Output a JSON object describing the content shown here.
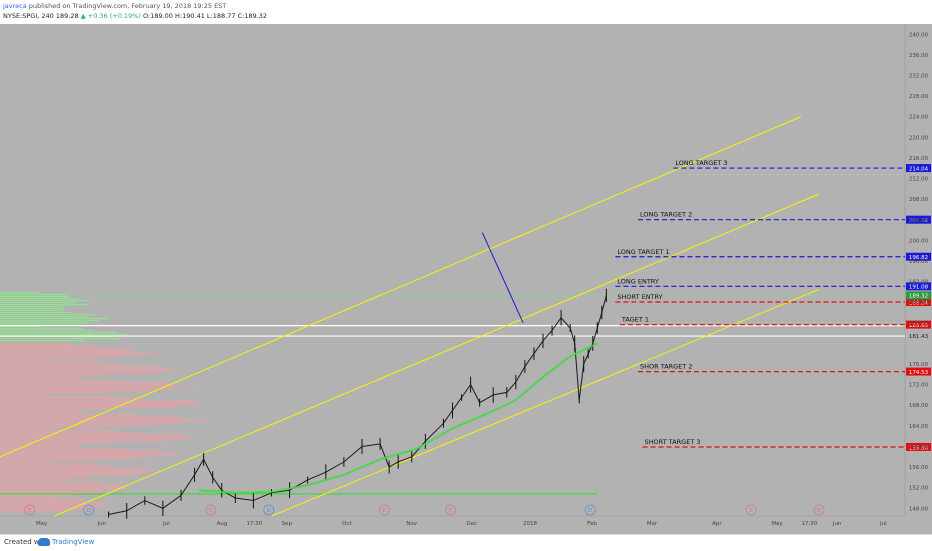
{
  "header": {
    "author": "javreca",
    "published": " published on TradingView.com, February 19, 2018 19:25 EST",
    "symbol": "NYSE:SPGI, 240",
    "last": "189.28",
    "change": "▲ +0.36 (+0.19%)",
    "open": "O:189.00",
    "high": "H:190.41",
    "low": "L:188.77",
    "close": "C:189.32"
  },
  "footer": {
    "created_with": "Created with",
    "brand": "TradingView"
  },
  "colors": {
    "background": "#b2b2b2",
    "channel": "#f5f500",
    "long_line": "#1a1ad6",
    "short_line": "#e01010",
    "ma": "#3ddc3d",
    "volume_profile": "#e8a0a6",
    "volume_profile_green": "#8fe08f"
  },
  "chart_data": {
    "type": "line",
    "title": "NYSE:SPGI, 240",
    "y_axis_labels": [
      "240.00",
      "236.00",
      "232.00",
      "228.00",
      "224.00",
      "220.00",
      "216.00",
      "212.00",
      "208.00",
      "204.00",
      "200.00",
      "196.00",
      "192.00",
      "188.00",
      "184.00",
      "181.43",
      "176.00",
      "172.00",
      "168.00",
      "164.00",
      "160.00",
      "156.00",
      "152.00",
      "148.00"
    ],
    "ylim": [
      146.5,
      242
    ],
    "x_axis_labels": [
      "May",
      "Jun",
      "Jul",
      "Aug",
      "17:30",
      "Sep",
      "Oct",
      "Nov",
      "Dec",
      "2018",
      "Feb",
      "Mar",
      "Apr",
      "May",
      "17:30",
      "Jun",
      "Jul"
    ],
    "price_levels": [
      {
        "label": "LONG TARGET 3",
        "price_tag": "214.04",
        "value": 214.04,
        "kind": "long"
      },
      {
        "label": "LONG TARGET 2",
        "price_tag": "204.02",
        "value": 204.02,
        "kind": "long"
      },
      {
        "label": "LONG TARGET 1",
        "price_tag": "196.82",
        "value": 196.82,
        "kind": "long"
      },
      {
        "label": "LONG ENTRY",
        "price_tag": "191.08",
        "value": 191.08,
        "kind": "long"
      },
      {
        "label": "SHORT ENTRY",
        "price_tag": "188.04",
        "value": 188.04,
        "kind": "short"
      },
      {
        "label": "TAGET 1",
        "price_tag": "183.65",
        "value": 183.65,
        "kind": "short"
      },
      {
        "label": "SHOR TARGET 2",
        "price_tag": "174.53",
        "value": 174.53,
        "kind": "short"
      },
      {
        "label": "SHORT TARGET 3",
        "price_tag": "159.90",
        "value": 159.9,
        "kind": "short"
      }
    ],
    "current_price": {
      "price_tag": "189.32",
      "value": 189.32
    },
    "horizontal_level": {
      "price_tag": "181.43",
      "value": 181.43
    },
    "event_markers": [
      "E",
      "D",
      "E",
      "D",
      "E",
      "E",
      "D",
      "E",
      "E"
    ],
    "series": [
      {
        "kind": "price",
        "values": [
          [
            0.12,
            146.8
          ],
          [
            0.14,
            147.5
          ],
          [
            0.16,
            149.5
          ],
          [
            0.18,
            148.0
          ],
          [
            0.2,
            150.5
          ],
          [
            0.215,
            154.5
          ],
          [
            0.225,
            157.5
          ],
          [
            0.235,
            154.0
          ],
          [
            0.245,
            151.5
          ],
          [
            0.26,
            150.0
          ],
          [
            0.28,
            149.5
          ],
          [
            0.3,
            151.0
          ],
          [
            0.32,
            151.5
          ],
          [
            0.34,
            153.5
          ],
          [
            0.36,
            155.0
          ],
          [
            0.38,
            157.0
          ],
          [
            0.4,
            160.0
          ],
          [
            0.42,
            160.5
          ],
          [
            0.43,
            156.0
          ],
          [
            0.44,
            157.0
          ],
          [
            0.455,
            158.0
          ],
          [
            0.47,
            161.0
          ],
          [
            0.49,
            164.5
          ],
          [
            0.5,
            167.0
          ],
          [
            0.51,
            169.5
          ],
          [
            0.52,
            172.0
          ],
          [
            0.53,
            168.5
          ],
          [
            0.545,
            170.0
          ],
          [
            0.56,
            170.5
          ],
          [
            0.57,
            172.5
          ],
          [
            0.58,
            175.5
          ],
          [
            0.59,
            178.0
          ],
          [
            0.6,
            180.5
          ],
          [
            0.61,
            182.5
          ],
          [
            0.62,
            185.0
          ],
          [
            0.63,
            183.0
          ],
          [
            0.635,
            180.0
          ],
          [
            0.64,
            169.0
          ],
          [
            0.645,
            176.0
          ],
          [
            0.65,
            178.0
          ],
          [
            0.655,
            180.0
          ],
          [
            0.66,
            183.0
          ],
          [
            0.665,
            186.0
          ],
          [
            0.67,
            189.3
          ]
        ]
      },
      {
        "kind": "ma",
        "values": [
          [
            0.22,
            151.5
          ],
          [
            0.26,
            151.0
          ],
          [
            0.3,
            151.2
          ],
          [
            0.34,
            152.5
          ],
          [
            0.38,
            154.5
          ],
          [
            0.42,
            157.5
          ],
          [
            0.46,
            159.5
          ],
          [
            0.5,
            163.5
          ],
          [
            0.54,
            166.5
          ],
          [
            0.57,
            169.0
          ],
          [
            0.6,
            173.5
          ],
          [
            0.63,
            177.5
          ],
          [
            0.66,
            180.0
          ]
        ]
      }
    ]
  }
}
